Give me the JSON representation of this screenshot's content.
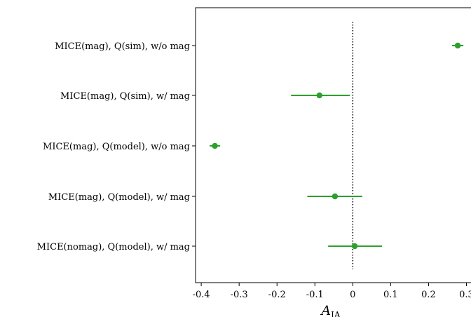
{
  "chart_data": {
    "type": "forest",
    "categories": [
      "MICE(mag), Q(sim), w/o mag",
      "MICE(mag), Q(sim), w/ mag",
      "MICE(mag), Q(model), w/o mag",
      "MICE(mag), Q(model), w/ mag",
      "MICE(nomag), Q(model), w/ mag"
    ],
    "values": [
      0.277,
      -0.088,
      -0.364,
      -0.047,
      0.005
    ],
    "err_low": [
      0.262,
      -0.163,
      -0.378,
      -0.12,
      -0.065
    ],
    "err_high": [
      0.292,
      -0.008,
      -0.35,
      0.025,
      0.077
    ],
    "xlim": [
      -0.415,
      0.325
    ],
    "xticks": [
      -0.4,
      -0.3,
      -0.2,
      -0.1,
      0,
      0.1,
      0.2,
      0.3
    ],
    "xtick_labels": [
      "-0.4",
      "-0.3",
      "-0.2",
      "-0.1",
      "0",
      "0.1",
      "0.2",
      "0.3"
    ],
    "xlabel_main": "A",
    "xlabel_sub": "IA",
    "reference_line_x": 0,
    "marker_color": "#2ca02c",
    "grid": false
  }
}
